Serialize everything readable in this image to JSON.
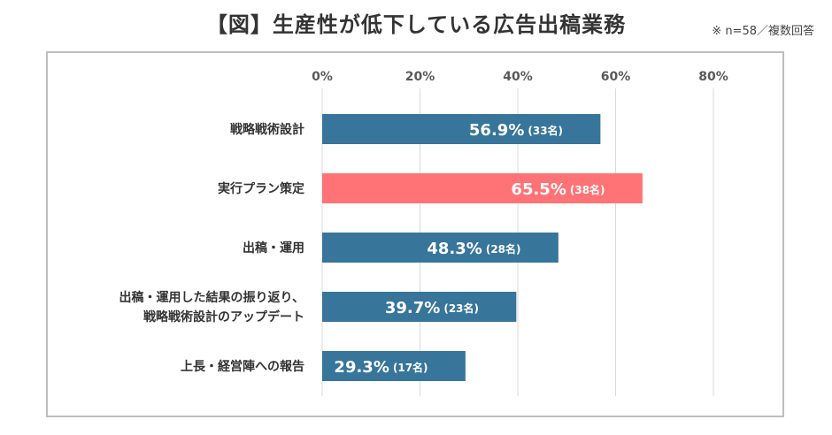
{
  "title": "【図】生産性が低下している広告出稿業務",
  "note": "※ n=58／複数回答",
  "chart_data": {
    "type": "bar",
    "orientation": "horizontal",
    "xlim": [
      0,
      80
    ],
    "xticks": [
      "0%",
      "20%",
      "40%",
      "60%",
      "80%"
    ],
    "grid": true,
    "categories": [
      [
        "戦略戦術設計"
      ],
      [
        "実行プラン策定"
      ],
      [
        "出稿・運用"
      ],
      [
        "出稿・運用した結果の振り返り、",
        "戦略戦術設計のアップデート"
      ],
      [
        "上長・経営陣への報告"
      ]
    ],
    "values": [
      56.9,
      65.5,
      48.3,
      39.7,
      29.3
    ],
    "value_labels": [
      "56.9%",
      "65.5%",
      "48.3%",
      "39.7%",
      "29.3%"
    ],
    "count_labels": [
      "(33名)",
      "(38名)",
      "(28名)",
      "(23名)",
      "(17名)"
    ],
    "colors": [
      "#37759b",
      "#ff7276",
      "#37759b",
      "#37759b",
      "#37759b"
    ]
  }
}
